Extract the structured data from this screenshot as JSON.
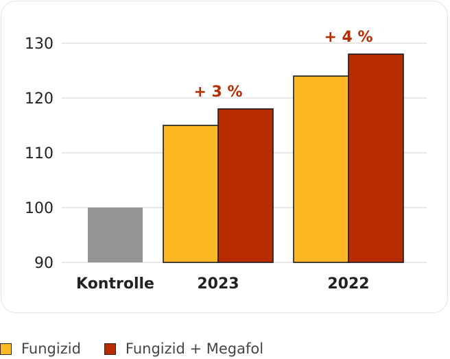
{
  "chart_data": {
    "type": "bar",
    "categories": [
      "Kontrolle",
      "2023",
      "2022"
    ],
    "series": [
      {
        "name": "Kontrolle",
        "values": [
          100,
          null,
          null
        ]
      },
      {
        "name": "Fungizid",
        "values": [
          null,
          115,
          124
        ]
      },
      {
        "name": "Fungizid + Megafol",
        "values": [
          null,
          118,
          128
        ]
      }
    ],
    "annotations": [
      {
        "category": "2023",
        "text": "+ 3 %"
      },
      {
        "category": "2022",
        "text": "+ 4 %"
      }
    ],
    "yticks": [
      90,
      100,
      110,
      120,
      130
    ],
    "ylim": [
      90,
      134
    ],
    "grid": true,
    "legend_position": "bottom-left",
    "colors": {
      "kontrolle": "#959595",
      "fungizid": "#fdb923",
      "megafol": "#b72d01",
      "annotation": "#b72d01",
      "grid": "#d9d9d9",
      "axis_text": "#222222"
    }
  },
  "legend": {
    "items": [
      {
        "label": "Fungizid",
        "color": "#fdb923"
      },
      {
        "label": "Fungizid + Megafol",
        "color": "#b72d01"
      }
    ]
  }
}
